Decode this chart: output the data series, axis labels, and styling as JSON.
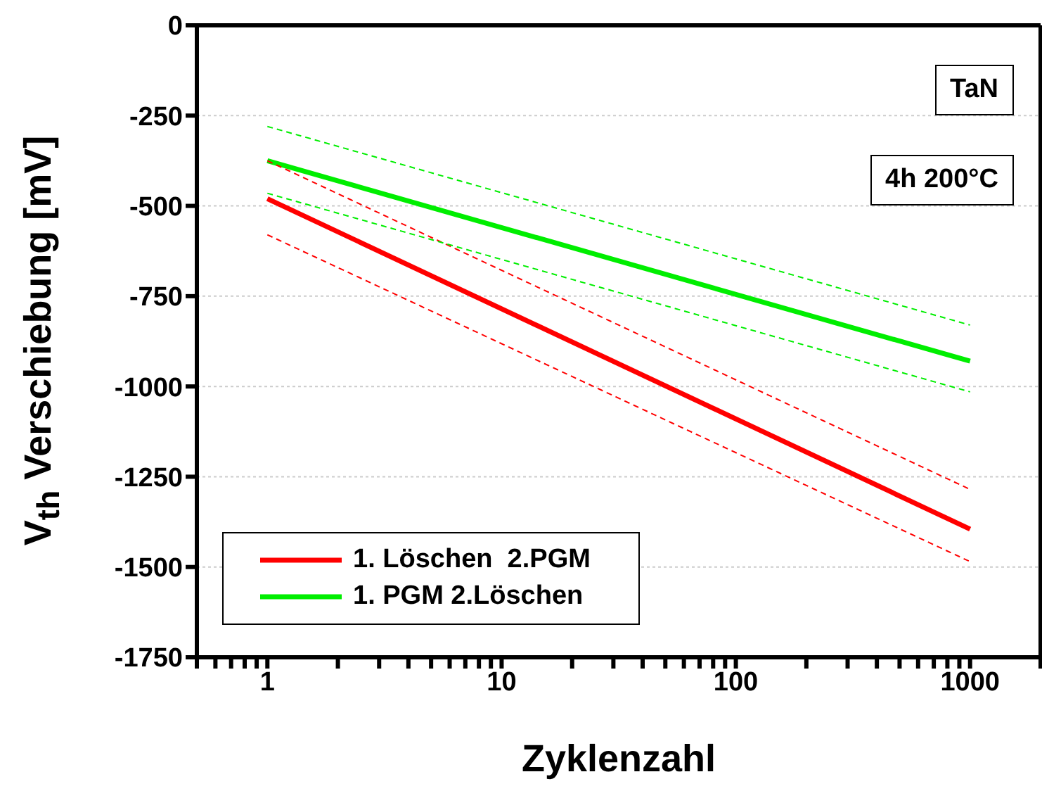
{
  "chart_data": {
    "type": "line",
    "xlabel": "Zyklenzahl",
    "ylabel": "V$_{th}$ Verschiebung [mV]",
    "annotations": [
      "TaN",
      "4h 200°C"
    ],
    "log": "x",
    "grid": "y",
    "legend": "bottom left",
    "marker": "none",
    "xlim": [
      0.5,
      2000
    ],
    "ylim": [
      -1750,
      0
    ],
    "xticks": [
      {
        "value": 0.5,
        "label": null
      },
      {
        "value": 0.6,
        "label": null
      },
      {
        "value": 0.7,
        "label": null
      },
      {
        "value": 0.8,
        "label": null
      },
      {
        "value": 0.9,
        "label": null
      },
      1,
      {
        "value": 2,
        "label": null
      },
      {
        "value": 3,
        "label": null
      },
      {
        "value": 4,
        "label": null
      },
      {
        "value": 5,
        "label": null
      },
      {
        "value": 6,
        "label": null
      },
      {
        "value": 7,
        "label": null
      },
      {
        "value": 8,
        "label": null
      },
      {
        "value": 9,
        "label": null
      },
      10,
      {
        "value": 20,
        "label": null
      },
      {
        "value": 30,
        "label": null
      },
      {
        "value": 40,
        "label": null
      },
      {
        "value": 50,
        "label": null
      },
      {
        "value": 60,
        "label": null
      },
      {
        "value": 70,
        "label": null
      },
      {
        "value": 80,
        "label": null
      },
      {
        "value": 90,
        "label": null
      },
      100,
      {
        "value": 200,
        "label": null
      },
      {
        "value": 300,
        "label": null
      },
      {
        "value": 400,
        "label": null
      },
      {
        "value": 500,
        "label": null
      },
      {
        "value": 600,
        "label": null
      },
      {
        "value": 700,
        "label": null
      },
      {
        "value": 800,
        "label": null
      },
      {
        "value": 900,
        "label": null
      },
      1000,
      {
        "value": 2000,
        "label": null
      }
    ],
    "yticks": [
      0,
      -250,
      -500,
      -750,
      -1000,
      -1250,
      -1500,
      -1750
    ],
    "x": [
      1,
      1000
    ],
    "series": [
      {
        "name": "1. Löschen  2.PGM",
        "color": "#ff0000",
        "values": [
          -480,
          -1395
        ],
        "line_style": "solid"
      },
      {
        "name": "1. PGM 2.Löschen",
        "color": "#00ee00",
        "values": [
          -375,
          -930
        ],
        "line_style": "solid"
      },
      {
        "color": "#ff0000",
        "values": [
          -580,
          -1485
        ],
        "line_style": "dashed"
      },
      {
        "color": "#ff0000",
        "values": [
          -375,
          -1285
        ],
        "line_style": "dashed"
      },
      {
        "color": "#00ee00",
        "values": [
          -465,
          -1015
        ],
        "line_style": "dashed"
      },
      {
        "color": "#00ee00",
        "values": [
          -280,
          -830
        ],
        "line_style": "dashed"
      }
    ]
  }
}
